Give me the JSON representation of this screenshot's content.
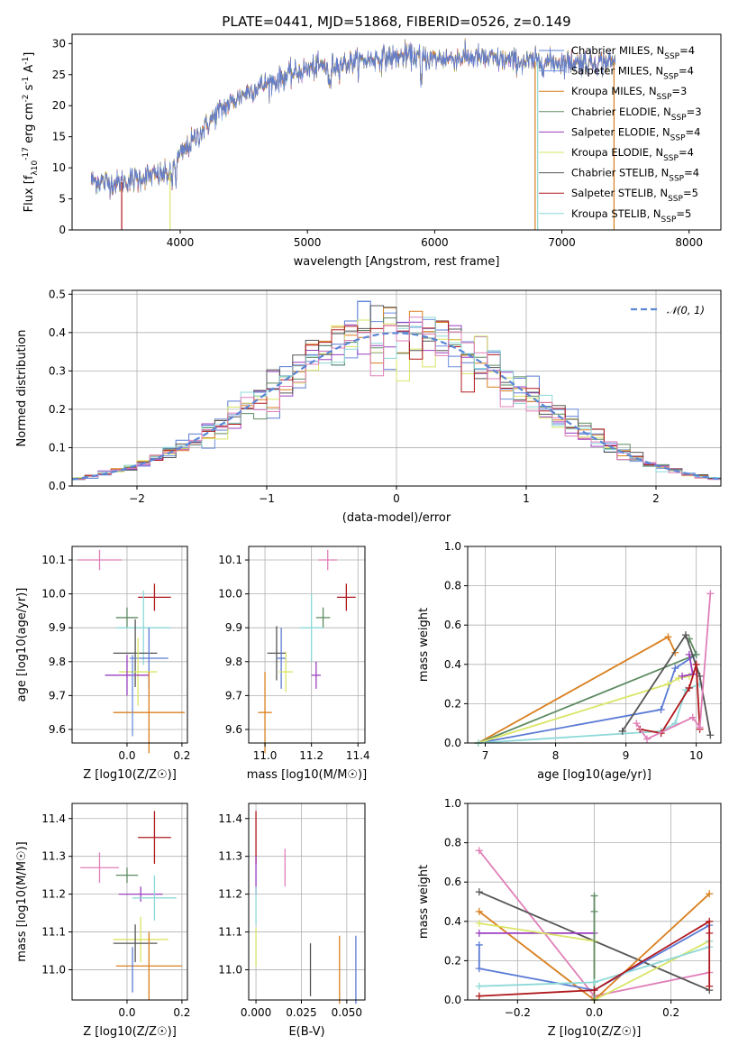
{
  "figure": {
    "title": "PLATE=0441, MJD=51868, FIBERID=0526, z=0.149",
    "colors": {
      "Chabrier MILES": "#5b7bd5",
      "Salpeter MILES": "#6c8fdd",
      "Kroupa MILES": "#d97f1e",
      "Chabrier ELODIE": "#5e8b62",
      "Salpeter ELODIE": "#9a3fbf",
      "Kroupa ELODIE": "#d9e566",
      "Chabrier STELIB": "#555555",
      "Salpeter STELIB": "#b0181c",
      "Kroupa STELIB": "#8ed8d8",
      "extra": "#e07fb8"
    }
  },
  "chart_data": [
    {
      "id": "spectrum",
      "type": "line",
      "xlabel": "wavelength [Angstrom, rest frame]",
      "ylabel": "Flux [f_λ10^-17 erg cm^-2 s^-1 A^-1]",
      "xlim": [
        3150,
        8250
      ],
      "ylim": [
        0,
        31.5
      ],
      "xticks": [
        4000,
        5000,
        6000,
        7000,
        8000
      ],
      "yticks": [
        0,
        5,
        10,
        15,
        20,
        25,
        30
      ],
      "grid": false,
      "legend_position": "upper-right",
      "legend": [
        {
          "name": "Chabrier MILES, N_SSP=4",
          "color": "#5b7bd5"
        },
        {
          "name": "Salpeter MILES, N_SSP=4",
          "color": "#6c8fdd"
        },
        {
          "name": "Kroupa MILES, N_SSP=3",
          "color": "#d97f1e"
        },
        {
          "name": "Chabrier ELODIE, N_SSP=3",
          "color": "#5e8b62"
        },
        {
          "name": "Salpeter ELODIE, N_SSP=4",
          "color": "#9a3fbf"
        },
        {
          "name": "Kroupa ELODIE, N_SSP=4",
          "color": "#d9e566"
        },
        {
          "name": "Chabrier STELIB, N_SSP=4",
          "color": "#555555"
        },
        {
          "name": "Salpeter STELIB, N_SSP=5",
          "color": "#b0181c"
        },
        {
          "name": "Kroupa STELIB, N_SSP=5",
          "color": "#8ed8d8"
        }
      ],
      "continuum": [
        [
          3300,
          8
        ],
        [
          3500,
          7.5
        ],
        [
          3700,
          8.5
        ],
        [
          3900,
          9
        ],
        [
          4000,
          12
        ],
        [
          4300,
          19
        ],
        [
          4500,
          22
        ],
        [
          4800,
          24.5
        ],
        [
          5000,
          26
        ],
        [
          5200,
          26.5
        ],
        [
          5500,
          27.5
        ],
        [
          5800,
          28
        ],
        [
          6000,
          27.5
        ],
        [
          6300,
          27.8
        ],
        [
          6600,
          27.2
        ],
        [
          7000,
          27
        ],
        [
          7400,
          27
        ]
      ],
      "spectrum_range": [
        3300,
        7420
      ],
      "cutoffs": [
        {
          "x": 3540,
          "color": "#b0181c"
        },
        {
          "x": 3920,
          "color": "#d9e566"
        },
        {
          "x": 6790,
          "color": "#d97f1e"
        },
        {
          "x": 6810,
          "color": "#8ed8d8"
        },
        {
          "x": 7410,
          "color": "#d97f1e"
        }
      ]
    },
    {
      "id": "residuals",
      "type": "histogram",
      "xlabel": "(data-model)/error",
      "ylabel": "Normed distribution",
      "xlim": [
        -2.5,
        2.5
      ],
      "ylim": [
        0,
        0.51
      ],
      "xticks": [
        -2,
        -1,
        0,
        1,
        2
      ],
      "yticks": [
        0.0,
        0.1,
        0.2,
        0.3,
        0.4,
        0.5
      ],
      "grid": true,
      "bin_width": 0.1,
      "legend_position": "upper-right",
      "legend": [
        {
          "name": "𝒩(0, 1)",
          "color": "#5b86d6",
          "style": "dashed"
        }
      ]
    },
    {
      "id": "age-vs-Z",
      "type": "errorbar",
      "xlabel": "Z [log10(Z/Z☉)]",
      "ylabel": "age [log10(age/yr)]",
      "xlim": [
        -0.2,
        0.22
      ],
      "ylim": [
        9.56,
        10.14
      ],
      "xticks": [
        0.0,
        0.2
      ],
      "yticks": [
        9.6,
        9.7,
        9.8,
        9.9,
        10.0,
        10.1
      ],
      "grid": true,
      "points": [
        {
          "x": -0.1,
          "y": 10.1,
          "xerr": 0.08,
          "yerr": 0.03,
          "color": "#e07fb8"
        },
        {
          "x": 0.1,
          "y": 9.99,
          "xerr": 0.06,
          "yerr": 0.04,
          "color": "#b0181c"
        },
        {
          "x": 0.0,
          "y": 9.93,
          "xerr": 0.04,
          "yerr": 0.03,
          "color": "#5e8b62"
        },
        {
          "x": 0.06,
          "y": 9.9,
          "xerr": 0.1,
          "yerr": 0.11,
          "color": "#8ed8d8"
        },
        {
          "x": 0.03,
          "y": 9.825,
          "xerr": 0.08,
          "yerr": 0.1,
          "color": "#555555"
        },
        {
          "x": 0.08,
          "y": 9.81,
          "xerr": 0.07,
          "yerr": 0.09,
          "color": "#5b7bd5"
        },
        {
          "x": 0.04,
          "y": 9.77,
          "xerr": 0.07,
          "yerr": 0.1,
          "color": "#d9e566"
        },
        {
          "x": 0.0,
          "y": 9.76,
          "xerr": 0.08,
          "yerr": 0.06,
          "color": "#9a3fbf"
        },
        {
          "x": 0.08,
          "y": 9.65,
          "xerr": 0.13,
          "yerr": 0.12,
          "color": "#d97f1e"
        },
        {
          "x": 0.02,
          "y": 9.7,
          "xerr": 0.0,
          "yerr": 0.12,
          "color": "#6c8fdd"
        }
      ]
    },
    {
      "id": "age-vs-mass",
      "type": "errorbar",
      "xlabel": "mass [log10(M/M☉)]",
      "ylabel": "",
      "xlim": [
        10.93,
        11.43
      ],
      "ylim": [
        9.56,
        10.14
      ],
      "xticks": [
        11.0,
        11.2,
        11.4
      ],
      "yticks": [
        9.6,
        9.7,
        9.8,
        9.9,
        10.0,
        10.1
      ],
      "grid": true,
      "points": [
        {
          "x": 11.27,
          "y": 10.1,
          "xerr": 0.04,
          "yerr": 0.03,
          "color": "#e07fb8"
        },
        {
          "x": 11.35,
          "y": 9.99,
          "xerr": 0.04,
          "yerr": 0.04,
          "color": "#b0181c"
        },
        {
          "x": 11.25,
          "y": 9.93,
          "xerr": 0.03,
          "yerr": 0.03,
          "color": "#5e8b62"
        },
        {
          "x": 11.2,
          "y": 9.9,
          "xerr": 0.05,
          "yerr": 0.1,
          "color": "#8ed8d8"
        },
        {
          "x": 11.05,
          "y": 9.825,
          "xerr": 0.04,
          "yerr": 0.08,
          "color": "#555555"
        },
        {
          "x": 11.07,
          "y": 9.81,
          "xerr": 0.02,
          "yerr": 0.09,
          "color": "#5b7bd5"
        },
        {
          "x": 11.09,
          "y": 9.77,
          "xerr": 0.03,
          "yerr": 0.06,
          "color": "#d9e566"
        },
        {
          "x": 11.22,
          "y": 9.76,
          "xerr": 0.02,
          "yerr": 0.04,
          "color": "#9a3fbf"
        },
        {
          "x": 11.0,
          "y": 9.65,
          "xerr": 0.03,
          "yerr": 0.12,
          "color": "#d97f1e"
        }
      ]
    },
    {
      "id": "weight-vs-age",
      "type": "line",
      "xlabel": "age [log10(age/yr)]",
      "ylabel": "mass weight",
      "xlim": [
        6.75,
        10.35
      ],
      "ylim": [
        0,
        1.0
      ],
      "xticks": [
        7,
        8,
        9,
        10
      ],
      "yticks": [
        0.0,
        0.2,
        0.4,
        0.6,
        0.8,
        1.0
      ],
      "grid": true,
      "series": [
        {
          "color": "#5b7bd5",
          "points": [
            [
              6.9,
              0.0
            ],
            [
              9.5,
              0.17
            ],
            [
              9.7,
              0.38
            ],
            [
              10.0,
              0.45
            ]
          ]
        },
        {
          "color": "#d97f1e",
          "points": [
            [
              6.9,
              0.0
            ],
            [
              9.6,
              0.54
            ],
            [
              9.7,
              0.46
            ]
          ]
        },
        {
          "color": "#5e8b62",
          "points": [
            [
              6.9,
              0.0
            ],
            [
              10.0,
              0.45
            ],
            [
              9.9,
              0.53
            ]
          ]
        },
        {
          "color": "#d9e566",
          "points": [
            [
              6.9,
              0.0
            ],
            [
              9.6,
              0.3
            ],
            [
              9.75,
              0.33
            ],
            [
              9.9,
              0.34
            ]
          ]
        },
        {
          "color": "#8ed8d8",
          "points": [
            [
              6.9,
              0.0
            ],
            [
              9.5,
              0.06
            ],
            [
              9.7,
              0.1
            ],
            [
              9.85,
              0.27
            ],
            [
              10.05,
              0.3
            ]
          ]
        },
        {
          "color": "#9a3fbf",
          "points": [
            [
              9.8,
              0.34
            ],
            [
              9.95,
              0.35
            ],
            [
              9.9,
              0.45
            ]
          ]
        },
        {
          "color": "#555555",
          "points": [
            [
              8.95,
              0.06
            ],
            [
              9.85,
              0.55
            ],
            [
              10.05,
              0.34
            ],
            [
              10.2,
              0.04
            ]
          ]
        },
        {
          "color": "#b0181c",
          "points": [
            [
              9.2,
              0.07
            ],
            [
              9.5,
              0.05
            ],
            [
              9.9,
              0.28
            ],
            [
              10.0,
              0.4
            ],
            [
              10.05,
              0.07
            ]
          ]
        },
        {
          "color": "#e07fb8",
          "points": [
            [
              9.15,
              0.1
            ],
            [
              9.3,
              0.02
            ],
            [
              9.95,
              0.13
            ],
            [
              10.05,
              0.08
            ],
            [
              10.2,
              0.76
            ]
          ]
        }
      ]
    },
    {
      "id": "mass-vs-Z",
      "type": "errorbar",
      "xlabel": "Z [log10(Z/Z☉)]",
      "ylabel": "mass [log10(M/M☉)]",
      "xlim": [
        -0.2,
        0.22
      ],
      "ylim": [
        10.92,
        11.44
      ],
      "xticks": [
        0.0,
        0.2
      ],
      "yticks": [
        11.0,
        11.1,
        11.2,
        11.3,
        11.4
      ],
      "grid": true,
      "points": [
        {
          "x": 0.1,
          "y": 11.35,
          "xerr": 0.06,
          "yerr": 0.07,
          "color": "#b0181c"
        },
        {
          "x": -0.1,
          "y": 11.27,
          "xerr": 0.07,
          "yerr": 0.04,
          "color": "#e07fb8"
        },
        {
          "x": 0.0,
          "y": 11.25,
          "xerr": 0.04,
          "yerr": 0.02,
          "color": "#5e8b62"
        },
        {
          "x": 0.05,
          "y": 11.2,
          "xerr": 0.08,
          "yerr": 0.02,
          "color": "#9a3fbf"
        },
        {
          "x": 0.1,
          "y": 11.19,
          "xerr": 0.08,
          "yerr": 0.06,
          "color": "#8ed8d8"
        },
        {
          "x": 0.05,
          "y": 11.08,
          "xerr": 0.1,
          "yerr": 0.06,
          "color": "#d9e566"
        },
        {
          "x": 0.03,
          "y": 11.07,
          "xerr": 0.08,
          "yerr": 0.05,
          "color": "#555555"
        },
        {
          "x": 0.08,
          "y": 11.01,
          "xerr": 0.12,
          "yerr": 0.09,
          "color": "#d97f1e"
        },
        {
          "x": 0.02,
          "y": 11.0,
          "xerr": 0.0,
          "yerr": 0.06,
          "color": "#5b7bd5"
        }
      ]
    },
    {
      "id": "mass-vs-ebv",
      "type": "errorbar",
      "xlabel": "E(B-V)",
      "ylabel": "",
      "xlim": [
        -0.004,
        0.06
      ],
      "ylim": [
        10.92,
        11.44
      ],
      "xticks": [
        0.0,
        0.025,
        0.05
      ],
      "ytick_values": [
        11.0,
        11.1,
        11.2,
        11.3,
        11.4
      ],
      "xtick_labels": [
        "0.000",
        "0.025",
        "0.050"
      ],
      "grid": true,
      "points": [
        {
          "x": 0.0,
          "y": 11.35,
          "xerr": 0.0,
          "yerr": 0.07,
          "color": "#b0181c"
        },
        {
          "x": 0.016,
          "y": 11.27,
          "xerr": 0.0,
          "yerr": 0.05,
          "color": "#e07fb8"
        },
        {
          "x": 0.0,
          "y": 11.25,
          "xerr": 0.0,
          "yerr": 0.05,
          "color": "#9a3fbf"
        },
        {
          "x": 0.0,
          "y": 11.17,
          "xerr": 0.0,
          "yerr": 0.05,
          "color": "#8ed8d8"
        },
        {
          "x": 0.0,
          "y": 11.06,
          "xerr": 0.0,
          "yerr": 0.05,
          "color": "#d9e566"
        },
        {
          "x": 0.03,
          "y": 11.0,
          "xerr": 0.0,
          "yerr": 0.07,
          "color": "#555555"
        },
        {
          "x": 0.046,
          "y": 11.0,
          "xerr": 0.0,
          "yerr": 0.09,
          "color": "#d97f1e"
        },
        {
          "x": 0.055,
          "y": 11.0,
          "xerr": 0.0,
          "yerr": 0.09,
          "color": "#5b7bd5"
        }
      ]
    },
    {
      "id": "weight-vs-Z",
      "type": "line",
      "xlabel": "Z [log10(Z/Z☉)]",
      "ylabel": "mass weight",
      "xlim": [
        -0.33,
        0.33
      ],
      "ylim": [
        0,
        1.0
      ],
      "xticks": [
        -0.2,
        0.0,
        0.2
      ],
      "yticks": [
        0.0,
        0.2,
        0.4,
        0.6,
        0.8,
        1.0
      ],
      "grid": true,
      "series": [
        {
          "color": "#e07fb8",
          "points": [
            [
              -0.3,
              0.76
            ],
            [
              0.0,
              0.02
            ],
            [
              0.3,
              0.14
            ]
          ]
        },
        {
          "color": "#555555",
          "points": [
            [
              -0.3,
              0.55
            ],
            [
              0.3,
              0.05
            ]
          ]
        },
        {
          "color": "#d97f1e",
          "points": [
            [
              -0.3,
              0.45
            ],
            [
              0.0,
              0.0
            ],
            [
              0.3,
              0.54
            ]
          ]
        },
        {
          "color": "#9a3fbf",
          "points": [
            [
              -0.3,
              0.34
            ],
            [
              0.0,
              0.34
            ]
          ]
        },
        {
          "color": "#d9e566",
          "points": [
            [
              -0.3,
              0.39
            ],
            [
              0.0,
              0.3
            ],
            [
              0.0,
              0.0
            ],
            [
              0.3,
              0.3
            ]
          ]
        },
        {
          "color": "#5e8b62",
          "points": [
            [
              0.0,
              0.53
            ],
            [
              0.0,
              0.45
            ],
            [
              0.0,
              0.0
            ]
          ]
        },
        {
          "color": "#5b7bd5",
          "points": [
            [
              -0.3,
              0.28
            ],
            [
              -0.3,
              0.16
            ],
            [
              0.0,
              0.05
            ],
            [
              0.3,
              0.38
            ]
          ]
        },
        {
          "color": "#8ed8d8",
          "points": [
            [
              -0.3,
              0.07
            ],
            [
              0.0,
              0.09
            ],
            [
              0.3,
              0.27
            ],
            [
              0.3,
              0.3
            ]
          ]
        },
        {
          "color": "#b0181c",
          "points": [
            [
              -0.3,
              0.02
            ],
            [
              0.0,
              0.05
            ],
            [
              0.3,
              0.4
            ],
            [
              0.3,
              0.34
            ],
            [
              0.3,
              0.07
            ]
          ]
        }
      ]
    }
  ]
}
